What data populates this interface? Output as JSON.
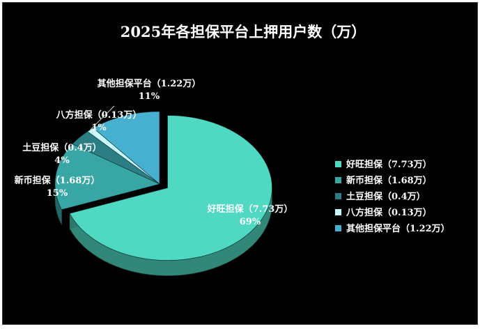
{
  "chart_data": {
    "type": "pie",
    "title": "2025年各担保平台上押用户数（万）",
    "categories": [
      "好旺担保（7.73万）",
      "新币担保（1.68万）",
      "土豆担保（0.4万）",
      "八方担保（0.13万）",
      "其他担保平台（1.22万）"
    ],
    "values": [
      7.73,
      1.68,
      0.4,
      0.13,
      1.22
    ],
    "percent_labels": [
      "69%",
      "15%",
      "4%",
      "1%",
      "11%"
    ],
    "colors": [
      "#4fd9c2",
      "#39a6a6",
      "#2b7f84",
      "#c8fbff",
      "#47afcf"
    ],
    "legend_position": "right",
    "exploded": "好旺担保（7.73万）"
  }
}
